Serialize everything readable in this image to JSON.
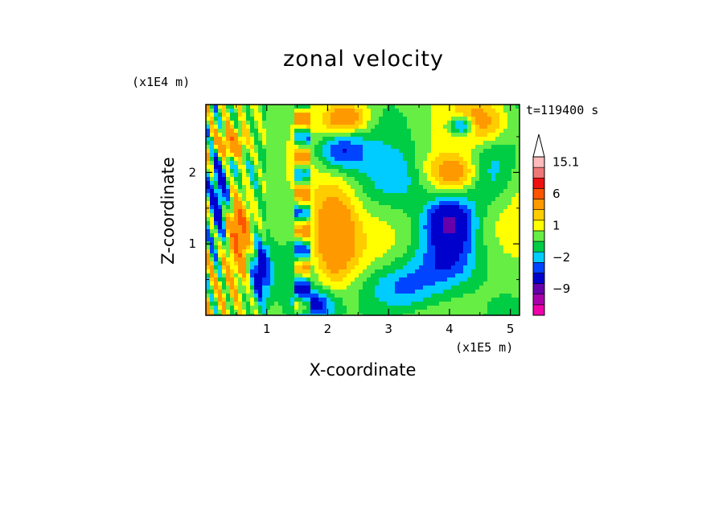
{
  "chart_data": {
    "type": "heatmap",
    "title": "zonal velocity",
    "xlabel": "X-coordinate",
    "ylabel": "Z-coordinate",
    "x_scale_label": "(x1E5 m)",
    "y_scale_label": "(x1E4 m)",
    "annotation": "t=119400 s",
    "xlim": [
      0,
      5.15
    ],
    "ylim": [
      0,
      2.95
    ],
    "x_ticks": [
      1,
      2,
      3,
      4,
      5
    ],
    "x_tick_labels": [
      "1",
      "2",
      "3",
      "4",
      "5"
    ],
    "y_ticks": [
      1,
      2
    ],
    "y_tick_labels": [
      "1",
      "2"
    ],
    "colorbar": {
      "levels_low_to_high": [
        -15,
        -12,
        -9,
        -6,
        -3,
        -2,
        -1,
        0,
        1,
        2,
        3,
        6,
        9,
        12,
        15.1
      ],
      "colors_low_to_high": [
        "#ee00aa",
        "#aa00aa",
        "#6600aa",
        "#0000cc",
        "#0044ff",
        "#00ccff",
        "#00cc44",
        "#66ee44",
        "#ffff00",
        "#ffcc00",
        "#ff9900",
        "#ff5500",
        "#ee1111",
        "#ee7777",
        "#ffbbbb"
      ],
      "labels": [
        "15.1",
        "6",
        "1",
        "−2",
        "−9"
      ],
      "label_values": [
        15.1,
        6,
        1,
        -2,
        -9
      ],
      "extend": "max"
    },
    "features": [
      {
        "x": 4.1,
        "z": 2.0,
        "u": 4,
        "sx": 0.35,
        "sy": 0.18
      },
      {
        "x": 2.1,
        "z": 1.1,
        "u": 5,
        "sx": 0.25,
        "sy": 0.45
      },
      {
        "x": 0.55,
        "z": 1.2,
        "u": 6,
        "sx": 0.12,
        "sy": 0.35
      },
      {
        "x": 2.3,
        "z": 2.75,
        "u": 4,
        "sx": 0.25,
        "sy": 0.15
      },
      {
        "x": 0.4,
        "z": 2.4,
        "u": 5,
        "sx": 0.2,
        "sy": 0.15
      },
      {
        "x": 4.0,
        "z": 1.3,
        "u": -6,
        "sx": 0.25,
        "sy": 0.2
      },
      {
        "x": 2.2,
        "z": 2.3,
        "u": -4,
        "sx": 0.3,
        "sy": 0.2
      },
      {
        "x": 4.6,
        "z": 2.0,
        "u": -3,
        "sx": 0.3,
        "sy": 0.3
      },
      {
        "x": 4.0,
        "z": 0.8,
        "u": -3,
        "sx": 0.35,
        "sy": 0.25
      },
      {
        "x": 3.2,
        "z": 0.4,
        "u": -3,
        "sx": 0.5,
        "sy": 0.25
      },
      {
        "x": 0.9,
        "z": 0.6,
        "u": -5,
        "sx": 0.12,
        "sy": 0.3
      },
      {
        "x": 1.8,
        "z": 0.15,
        "u": -4,
        "sx": 0.25,
        "sy": 0.15
      },
      {
        "x": 4.5,
        "z": 2.7,
        "u": 3,
        "sx": 0.3,
        "sy": 0.2
      },
      {
        "x": 0.2,
        "z": 1.6,
        "u": -4,
        "sx": 0.1,
        "sy": 0.5
      },
      {
        "x": 4.2,
        "z": 2.65,
        "u": -5,
        "sx": 0.15,
        "sy": 0.1
      },
      {
        "x": 3.1,
        "z": 1.9,
        "u": -2,
        "sx": 0.4,
        "sy": 0.3
      }
    ]
  }
}
